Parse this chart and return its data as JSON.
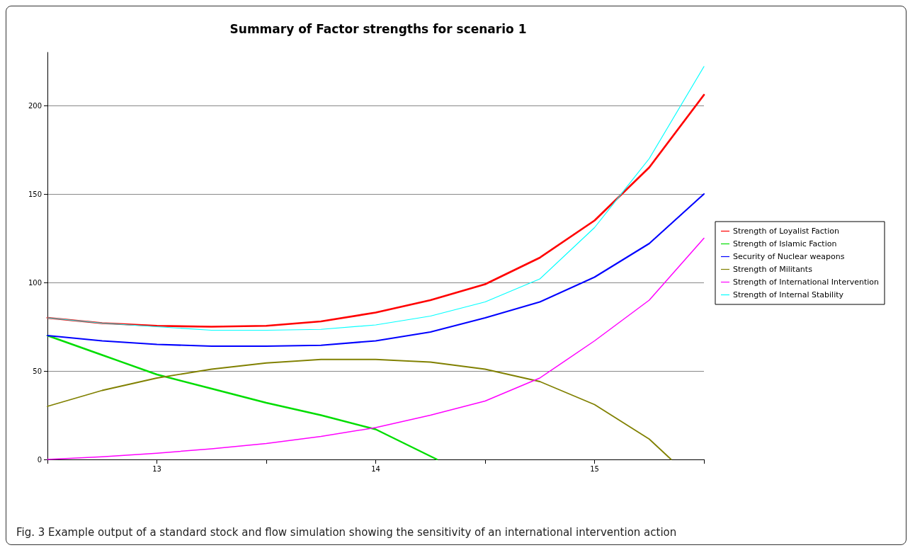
{
  "chart_data": {
    "type": "line",
    "title": "Summary of Factor strengths for scenario 1",
    "annotations": [
      "Fig. 3 Example output of a standard stock and flow simulation showing the sensitivity of an international intervention action"
    ],
    "x": [
      12.5,
      12.75,
      13,
      13.25,
      13.5,
      13.75,
      14,
      14.25,
      14.5,
      14.75,
      15,
      15.25,
      15.5
    ],
    "xlim": [
      12.5,
      15.5
    ],
    "xticks": [
      {
        "value": 12.5,
        "label": null
      },
      13,
      {
        "value": 13.5,
        "label": null
      },
      14,
      {
        "value": 14.5,
        "label": null
      },
      15,
      {
        "value": 15.5,
        "label": null
      }
    ],
    "ylim": [
      0,
      230
    ],
    "yticks": [
      0,
      50,
      100,
      150,
      200
    ],
    "grid": "y",
    "legend": "right",
    "marker": "none",
    "line_style": "solid",
    "series": [
      {
        "name": "Strength of Loyalist Faction",
        "color": "#ff0000",
        "values": [
          80,
          77,
          75.5,
          75,
          75.5,
          78,
          83,
          90,
          99,
          114,
          135,
          165,
          206
        ]
      },
      {
        "name": "Strength of Islamic Faction",
        "color": "#00dd00",
        "x": [
          12.5,
          12.75,
          13,
          13.25,
          13.5,
          13.75,
          14,
          14.28
        ],
        "values": [
          70,
          59,
          48,
          40,
          32,
          25,
          17,
          0
        ]
      },
      {
        "name": "Security of Nuclear weapons",
        "color": "#0000ff",
        "values": [
          70,
          67,
          65,
          64,
          64,
          64.5,
          67,
          72,
          80,
          89,
          103,
          122,
          150
        ]
      },
      {
        "name": "Strength of Militants",
        "color": "#808000",
        "x": [
          12.5,
          12.75,
          13,
          13.25,
          13.5,
          13.75,
          14,
          14.25,
          14.5,
          14.75,
          15,
          15.25,
          15.35
        ],
        "values": [
          30,
          39,
          46,
          51,
          54.5,
          56.5,
          56.5,
          55,
          51,
          44,
          31,
          11.5,
          0
        ]
      },
      {
        "name": "Strength of International Intervention",
        "color": "#ff00ff",
        "values": [
          0,
          1.5,
          3.5,
          6,
          9,
          13,
          18,
          25,
          33,
          46,
          67,
          90,
          125
        ]
      },
      {
        "name": "Strength of Internal Stability",
        "color": "#00ffff",
        "values": [
          80,
          77,
          75,
          73,
          73,
          73.5,
          76,
          81,
          89,
          102,
          131,
          170,
          222
        ]
      }
    ]
  }
}
